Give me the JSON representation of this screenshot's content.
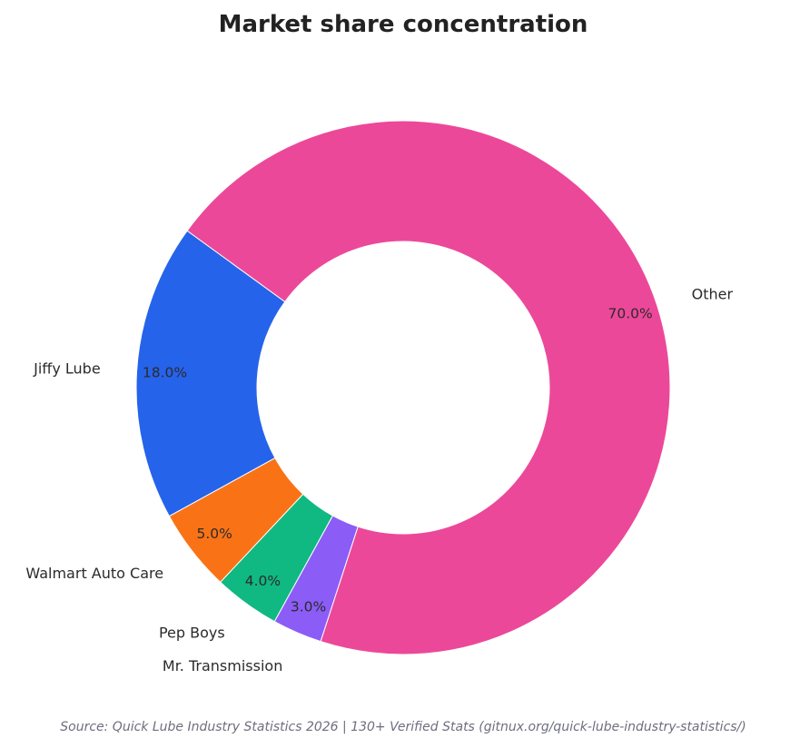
{
  "chart_data": {
    "type": "pie",
    "variant": "donut",
    "title": "Market share concentration",
    "categories": [
      "Jiffy Lube",
      "Walmart Auto Care",
      "Pep Boys",
      "Mr. Transmission",
      "Other"
    ],
    "values": [
      18.0,
      5.0,
      4.0,
      3.0,
      70.0
    ],
    "value_labels": [
      "18.0%",
      "5.0%",
      "4.0%",
      "3.0%",
      "70.0%"
    ],
    "colors": [
      "#2563eb",
      "#f97316",
      "#10b981",
      "#8b5cf6",
      "#ec4899"
    ],
    "start_angle_deg": 144,
    "direction": "counterclockwise",
    "legend": "none"
  },
  "source_note": "Source: Quick Lube Industry Statistics 2026 | 130+ Verified Stats (gitnux.org/quick-lube-industry-statistics/)"
}
